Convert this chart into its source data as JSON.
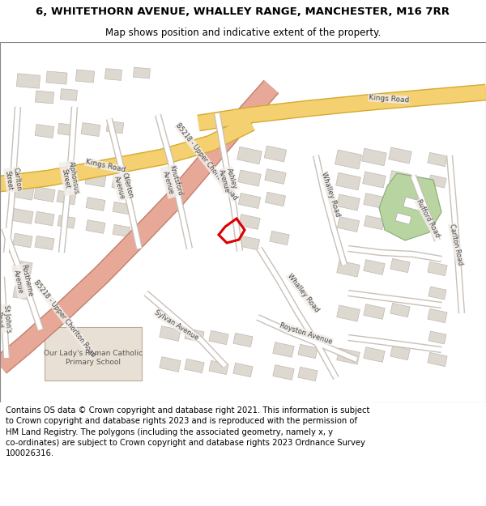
{
  "title": "6, WHITETHORN AVENUE, WHALLEY RANGE, MANCHESTER, M16 7RR",
  "subtitle": "Map shows position and indicative extent of the property.",
  "footer": "Contains OS data © Crown copyright and database right 2021. This information is subject to Crown copyright and database rights 2023 and is reproduced with the permission of HM Land Registry. The polygons (including the associated geometry, namely x, y co-ordinates) are subject to Crown copyright and database rights 2023 Ordnance Survey 100026316.",
  "map_bg": "#f2ede8",
  "building_color": "#ddd8d0",
  "building_edge": "#c0b8b0",
  "road_main_color": "#f5d070",
  "road_main_edge": "#d4aa30",
  "road_b_color": "#e8a898",
  "road_b_edge": "#c08070",
  "road_minor_color": "#ffffff",
  "road_minor_edge": "#c8c0b8",
  "green_color": "#b8d4a0",
  "green_edge": "#88aa78",
  "school_color": "#e8e0d4",
  "property_color": "#dd0000",
  "title_fontsize": 9.5,
  "subtitle_fontsize": 8.5,
  "footer_fontsize": 7.2,
  "label_color": "#444444",
  "label_bg": "#f2ede8"
}
